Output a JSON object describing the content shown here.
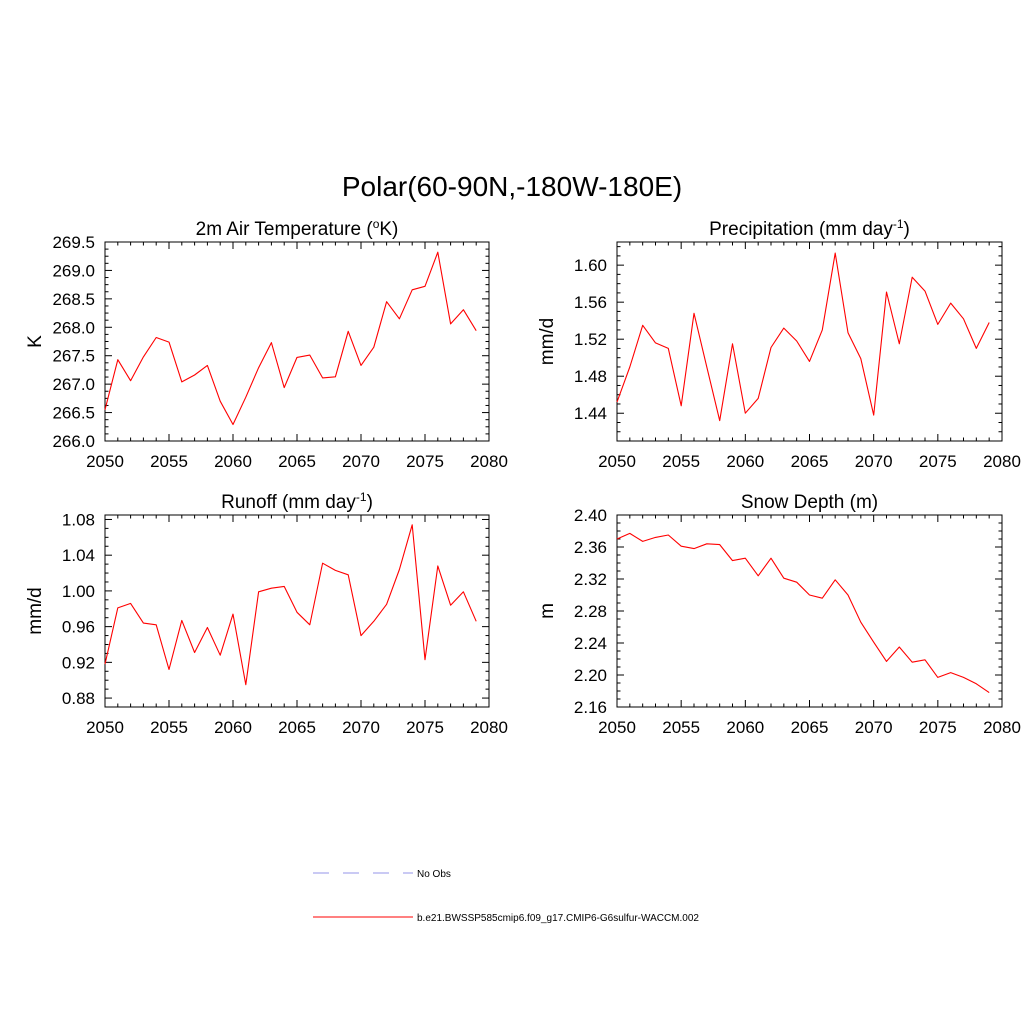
{
  "figure": {
    "title": "Polar(60-90N,-180W-180E)",
    "line_color": "#ff0000",
    "obs_color": "#aaaaee"
  },
  "legend": {
    "entries": [
      {
        "label": "No Obs",
        "style": "dashed",
        "color": "#aaaaee"
      },
      {
        "label": "b.e21.BWSSP585cmip6.f09_g17.CMIP6-G6sulfur-WACCM.002",
        "style": "solid",
        "color": "#ff0000"
      }
    ]
  },
  "chart_data": [
    {
      "type": "line",
      "title_main": "2m Air Temperature (",
      "title_sup": "o",
      "title_tail": "K)",
      "xlabel": "",
      "ylabel": "K",
      "xlim": [
        2050,
        2080
      ],
      "ylim": [
        266.0,
        269.5
      ],
      "xticks": [
        "2050",
        "2055",
        "2060",
        "2065",
        "2070",
        "2075",
        "2080"
      ],
      "yticks": [
        "266.0",
        "266.5",
        "267.0",
        "267.5",
        "268.0",
        "268.5",
        "269.0",
        "269.5"
      ],
      "x": [
        2050,
        2051,
        2052,
        2053,
        2054,
        2055,
        2056,
        2057,
        2058,
        2059,
        2060,
        2061,
        2062,
        2063,
        2064,
        2065,
        2066,
        2067,
        2068,
        2069,
        2070,
        2071,
        2072,
        2073,
        2074,
        2075,
        2076,
        2077,
        2078,
        2079
      ],
      "series": [
        {
          "values": [
            266.55,
            267.43,
            267.06,
            267.48,
            267.82,
            267.74,
            267.04,
            267.16,
            267.33,
            266.7,
            266.29,
            266.77,
            267.29,
            267.73,
            266.94,
            267.47,
            267.51,
            267.11,
            267.13,
            267.93,
            267.33,
            267.65,
            268.45,
            268.15,
            268.66,
            268.72,
            269.32,
            268.06,
            268.31,
            267.94
          ]
        }
      ]
    },
    {
      "type": "line",
      "title_main": "Precipitation (mm day",
      "title_sup": "-1",
      "title_tail": ")",
      "xlabel": "",
      "ylabel": "mm/d",
      "xlim": [
        2050,
        2080
      ],
      "ylim": [
        1.41,
        1.625
      ],
      "xticks": [
        "2050",
        "2055",
        "2060",
        "2065",
        "2070",
        "2075",
        "2080"
      ],
      "yticks": [
        "1.44",
        "1.48",
        "1.52",
        "1.56",
        "1.60"
      ],
      "x": [
        2050,
        2051,
        2052,
        2053,
        2054,
        2055,
        2056,
        2057,
        2058,
        2059,
        2060,
        2061,
        2062,
        2063,
        2064,
        2065,
        2066,
        2067,
        2068,
        2069,
        2070,
        2071,
        2072,
        2073,
        2074,
        2075,
        2076,
        2077,
        2078,
        2079
      ],
      "series": [
        {
          "values": [
            1.452,
            1.49,
            1.535,
            1.516,
            1.51,
            1.448,
            1.548,
            1.49,
            1.432,
            1.515,
            1.44,
            1.456,
            1.511,
            1.532,
            1.518,
            1.496,
            1.53,
            1.613,
            1.527,
            1.499,
            1.438,
            1.571,
            1.515,
            1.587,
            1.572,
            1.536,
            1.559,
            1.542,
            1.51,
            1.538
          ]
        }
      ]
    },
    {
      "type": "line",
      "title_main": "Runoff (mm day",
      "title_sup": "-1",
      "title_tail": ")",
      "xlabel": "",
      "ylabel": "mm/d",
      "xlim": [
        2050,
        2080
      ],
      "ylim": [
        0.87,
        1.085
      ],
      "xticks": [
        "2050",
        "2055",
        "2060",
        "2065",
        "2070",
        "2075",
        "2080"
      ],
      "yticks": [
        "0.88",
        "0.92",
        "0.96",
        "1.00",
        "1.04",
        "1.08"
      ],
      "x": [
        2050,
        2051,
        2052,
        2053,
        2054,
        2055,
        2056,
        2057,
        2058,
        2059,
        2060,
        2061,
        2062,
        2063,
        2064,
        2065,
        2066,
        2067,
        2068,
        2069,
        2070,
        2071,
        2072,
        2073,
        2074,
        2075,
        2076,
        2077,
        2078,
        2079
      ],
      "series": [
        {
          "values": [
            0.918,
            0.981,
            0.986,
            0.964,
            0.962,
            0.912,
            0.967,
            0.931,
            0.959,
            0.928,
            0.974,
            0.895,
            0.999,
            1.003,
            1.005,
            0.976,
            0.962,
            1.031,
            1.023,
            1.018,
            0.95,
            0.966,
            0.985,
            1.024,
            1.074,
            0.923,
            1.028,
            0.984,
            0.999,
            0.966
          ]
        }
      ]
    },
    {
      "type": "line",
      "title_main": "Snow Depth (m)",
      "title_sup": "",
      "title_tail": "",
      "xlabel": "",
      "ylabel": "m",
      "xlim": [
        2050,
        2080
      ],
      "ylim": [
        2.16,
        2.4
      ],
      "xticks": [
        "2050",
        "2055",
        "2060",
        "2065",
        "2070",
        "2075",
        "2080"
      ],
      "yticks": [
        "2.16",
        "2.20",
        "2.24",
        "2.28",
        "2.32",
        "2.36",
        "2.40"
      ],
      "x": [
        2050,
        2051,
        2052,
        2053,
        2054,
        2055,
        2056,
        2057,
        2058,
        2059,
        2060,
        2061,
        2062,
        2063,
        2064,
        2065,
        2066,
        2067,
        2068,
        2069,
        2070,
        2071,
        2072,
        2073,
        2074,
        2075,
        2076,
        2077,
        2078,
        2079
      ],
      "series": [
        {
          "values": [
            2.37,
            2.377,
            2.367,
            2.372,
            2.375,
            2.361,
            2.358,
            2.364,
            2.363,
            2.343,
            2.346,
            2.324,
            2.346,
            2.321,
            2.316,
            2.3,
            2.296,
            2.319,
            2.3,
            2.266,
            2.241,
            2.217,
            2.235,
            2.216,
            2.219,
            2.197,
            2.203,
            2.197,
            2.189,
            2.178
          ]
        }
      ]
    }
  ]
}
